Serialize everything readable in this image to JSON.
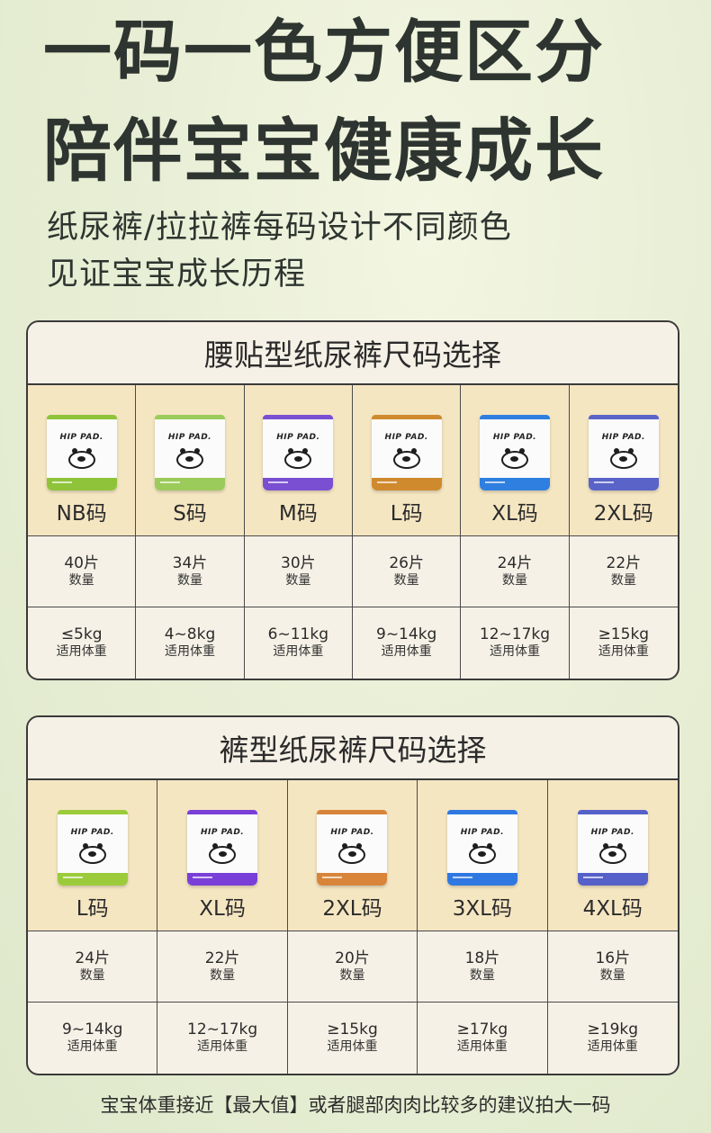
{
  "headline": {
    "line1": "一码一色方便区分",
    "line2": "陪伴宝宝健康成长"
  },
  "subtitle": {
    "line1": "纸尿裤/拉拉裤每码设计不同颜色",
    "line2": "见证宝宝成长历程"
  },
  "tape_diapers": {
    "title": "腰贴型纸尿裤尺码选择",
    "sizes": [
      {
        "label": "NB码",
        "count": "40片",
        "count_label": "数量",
        "weight": "≤5kg",
        "weight_label": "适用体重",
        "color": "#8fc43a",
        "pack_logo": "HIP PAD."
      },
      {
        "label": "S码",
        "count": "34片",
        "count_label": "数量",
        "weight": "4~8kg",
        "weight_label": "适用体重",
        "color": "#9bcb5a",
        "pack_logo": "HIP PAD."
      },
      {
        "label": "M码",
        "count": "30片",
        "count_label": "数量",
        "weight": "6~11kg",
        "weight_label": "适用体重",
        "color": "#7a4fd1",
        "pack_logo": "HIP PAD."
      },
      {
        "label": "L码",
        "count": "26片",
        "count_label": "数量",
        "weight": "9~14kg",
        "weight_label": "适用体重",
        "color": "#cf8a2e",
        "pack_logo": "HIP PAD."
      },
      {
        "label": "XL码",
        "count": "24片",
        "count_label": "数量",
        "weight": "12~17kg",
        "weight_label": "适用体重",
        "color": "#2f7fe0",
        "pack_logo": "HIP PAD."
      },
      {
        "label": "2XL码",
        "count": "22片",
        "count_label": "数量",
        "weight": "≥15kg",
        "weight_label": "适用体重",
        "color": "#5a63c8",
        "pack_logo": "HIP PAD."
      }
    ]
  },
  "pull_ups": {
    "title": "裤型纸尿裤尺码选择",
    "sizes": [
      {
        "label": "L码",
        "count": "24片",
        "count_label": "数量",
        "weight": "9~14kg",
        "weight_label": "适用体重",
        "color": "#9bcb3a",
        "pack_logo": "HIP PAD."
      },
      {
        "label": "XL码",
        "count": "22片",
        "count_label": "数量",
        "weight": "12~17kg",
        "weight_label": "适用体重",
        "color": "#7a3fd8",
        "pack_logo": "HIP PAD."
      },
      {
        "label": "2XL码",
        "count": "20片",
        "count_label": "数量",
        "weight": "≥15kg",
        "weight_label": "适用体重",
        "color": "#d8853a",
        "pack_logo": "HIP PAD."
      },
      {
        "label": "3XL码",
        "count": "18片",
        "count_label": "数量",
        "weight": "≥17kg",
        "weight_label": "适用体重",
        "color": "#2f78e2",
        "pack_logo": "HIP PAD."
      },
      {
        "label": "4XL码",
        "count": "16片",
        "count_label": "数量",
        "weight": "≥19kg",
        "weight_label": "适用体重",
        "color": "#5560c8",
        "pack_logo": "HIP PAD."
      }
    ]
  },
  "footer_note": "宝宝体重接近【最大值】或者腿部肉肉比较多的建议拍大一码"
}
